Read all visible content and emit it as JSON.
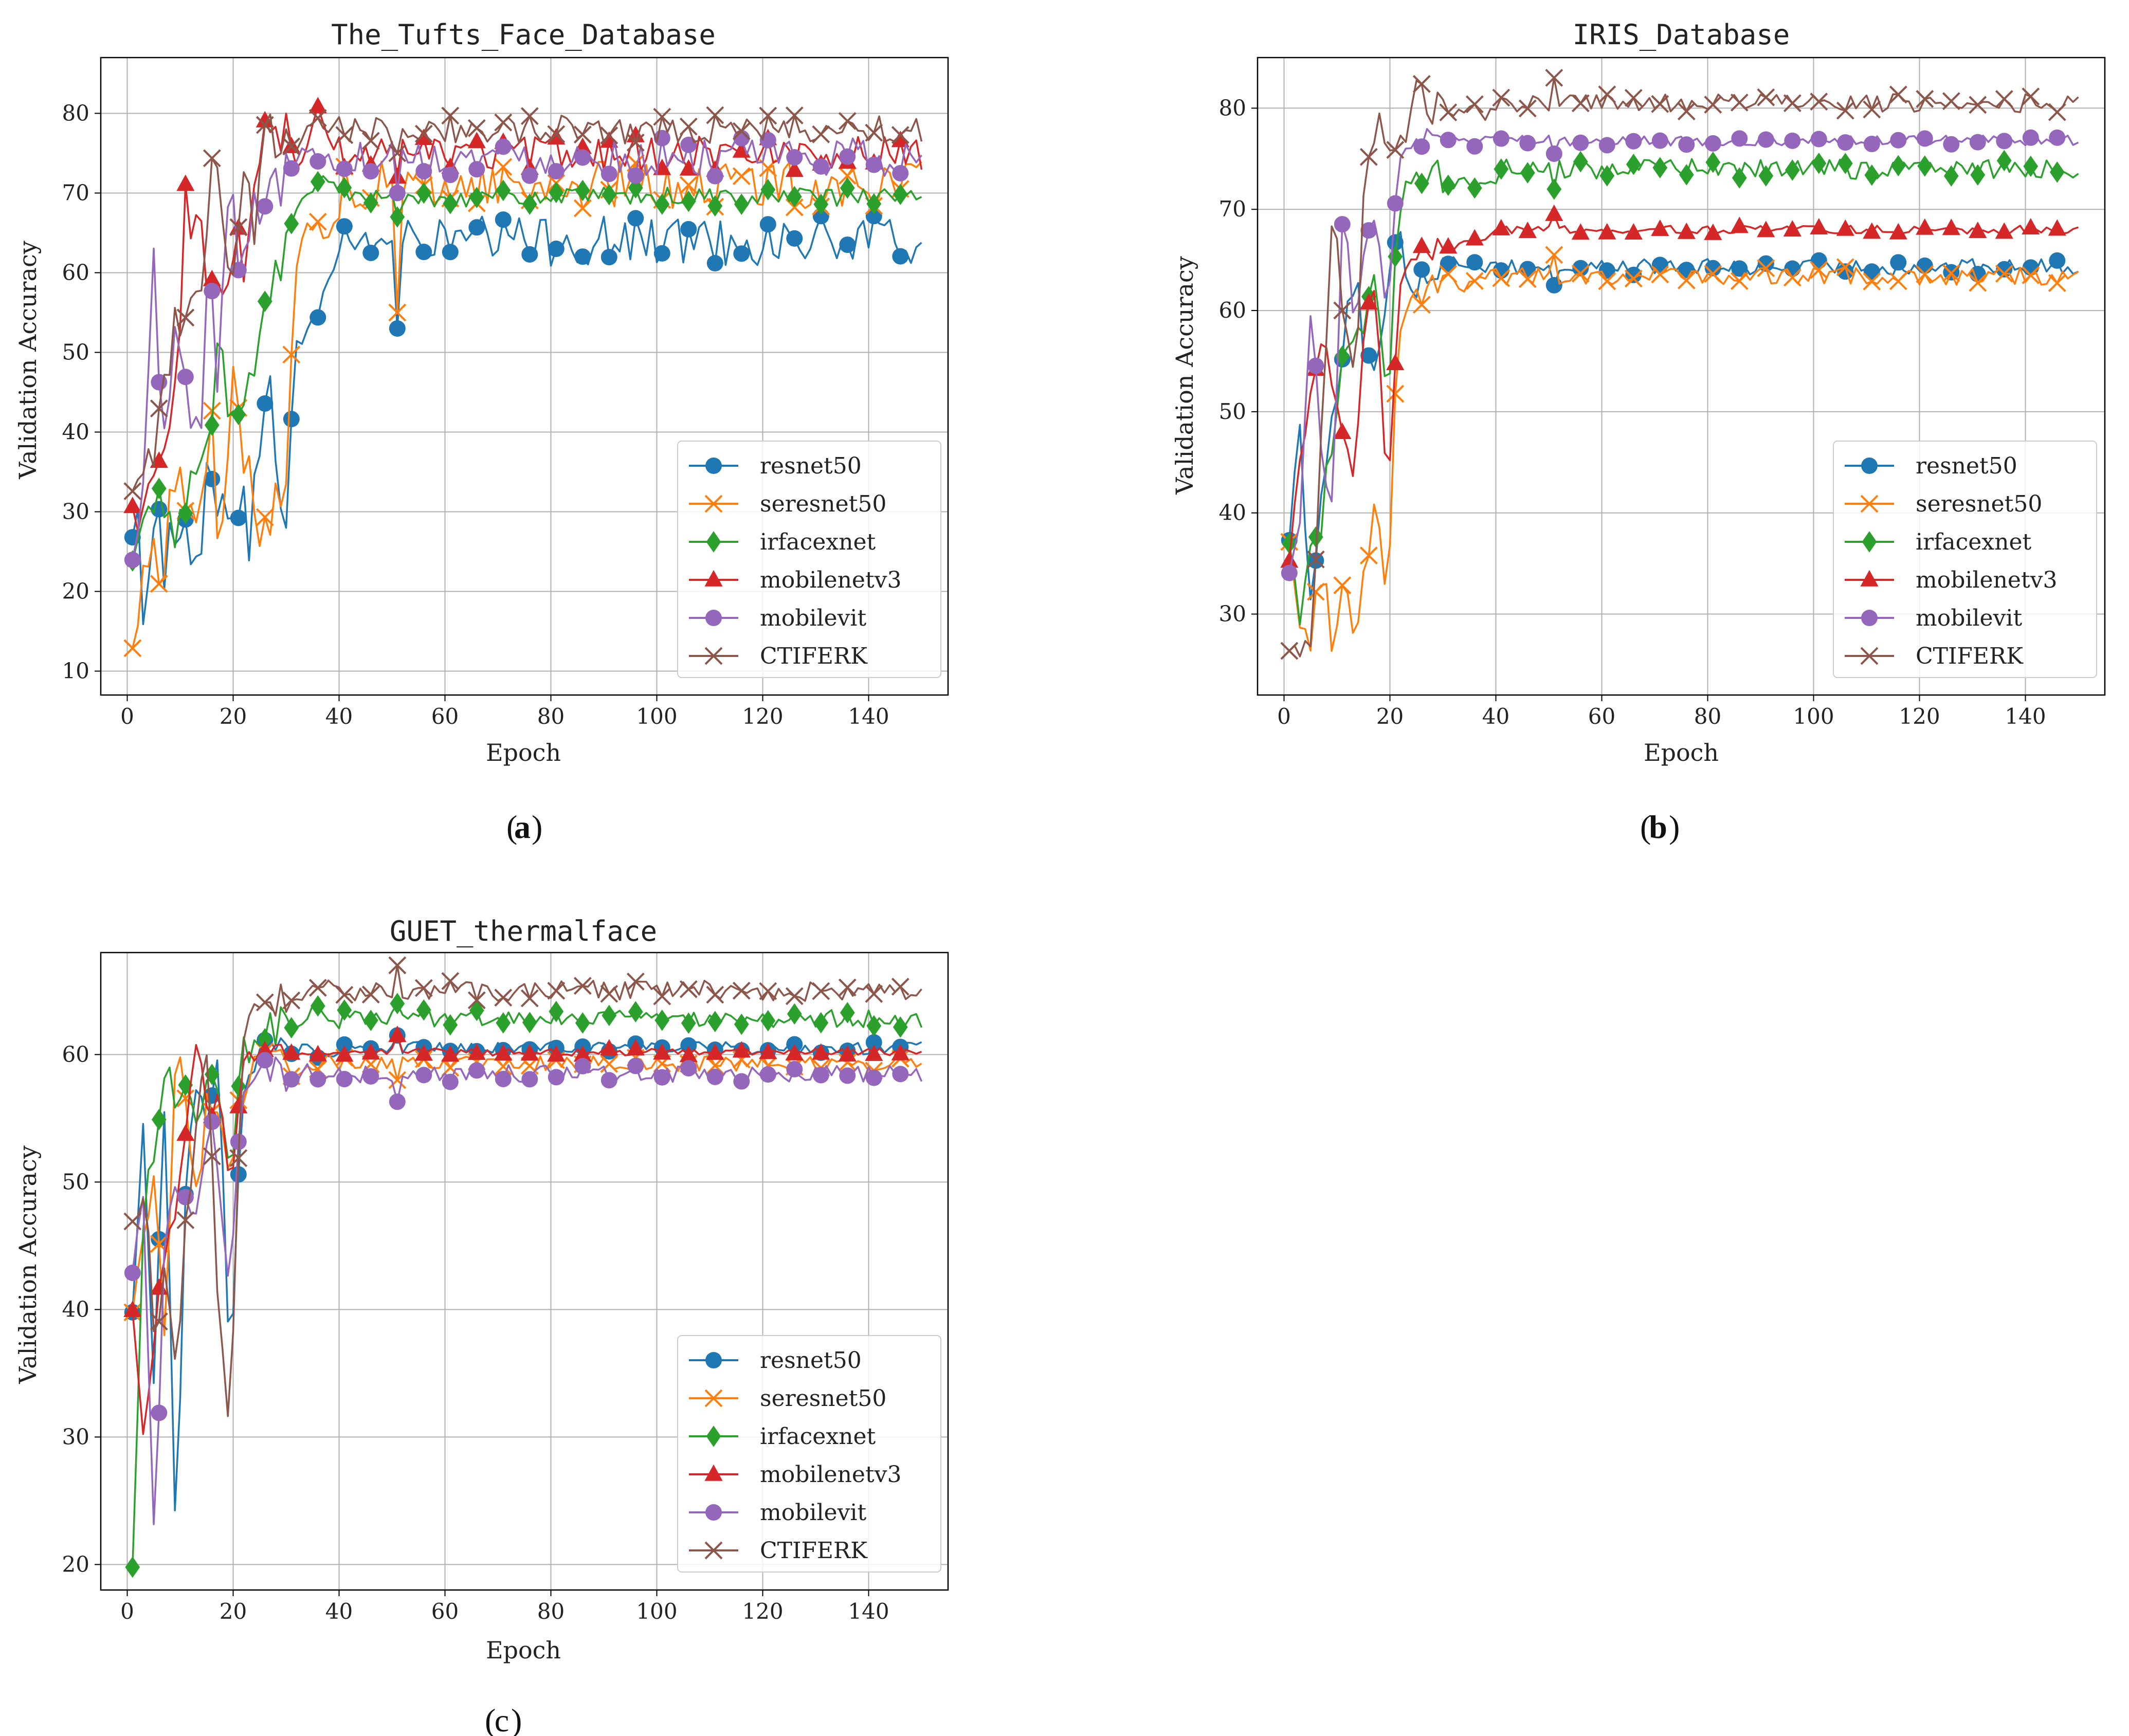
{
  "colors": {
    "resnet50": "#1f77b4",
    "seresnet50": "#ff7f0e",
    "irfacexnet": "#2ca02c",
    "mobilenetv3": "#d62728",
    "mobilevit": "#9467bd",
    "CTIFERK": "#8c564b"
  },
  "chart_data": [
    {
      "type": "line",
      "panel_label": "a",
      "title": "The_Tufts_Face_Database",
      "xlabel": "Epoch",
      "ylabel": "Validation Accuracy",
      "xlim": [
        -5,
        155
      ],
      "ylim": [
        7,
        87
      ],
      "xticks": [
        0,
        20,
        40,
        60,
        80,
        100,
        120,
        140
      ],
      "yticks": [
        10,
        20,
        30,
        40,
        50,
        60,
        70,
        80
      ],
      "legend": "lower-right",
      "grid": true,
      "series": [
        {
          "name": "resnet50",
          "marker": "circle",
          "early": [
            25,
            22,
            33,
            25,
            21,
            30,
            28,
            32,
            28,
            34,
            33,
            30,
            36,
            44,
            29,
            50,
            53,
            54,
            60,
            62
          ],
          "level": 64,
          "noise": 3.2,
          "spike_value": 53
        },
        {
          "name": "seresnet50",
          "marker": "x",
          "early": [
            11,
            25,
            22,
            28,
            31,
            33,
            30,
            40,
            28,
            43,
            38,
            31,
            32,
            33,
            36,
            60,
            65,
            66,
            64,
            68
          ],
          "level": 71,
          "noise": 3.0,
          "spike_value": 55
        },
        {
          "name": "irfacexnet",
          "marker": "diamond",
          "early": [
            23,
            28,
            30,
            32,
            25,
            33,
            35,
            38,
            52,
            40,
            44,
            48,
            55,
            59,
            62,
            68,
            70,
            71,
            72,
            70
          ],
          "level": 69.5,
          "noise": 1.2,
          "spike_value": 67
        },
        {
          "name": "mobilenetv3",
          "marker": "triangle",
          "early": [
            29,
            35,
            38,
            33,
            50,
            70,
            65,
            60,
            58,
            60,
            62,
            68,
            73,
            81,
            78,
            74,
            75,
            80,
            77,
            76
          ],
          "level": 75,
          "noise": 2.2,
          "spike_value": 72
        },
        {
          "name": "mobilevit",
          "marker": "circle",
          "early": [
            22,
            35,
            61,
            34,
            60,
            43,
            38,
            60,
            45,
            76,
            55,
            72,
            70,
            71,
            74,
            73,
            76,
            75,
            74,
            73
          ],
          "level": 74.5,
          "noise": 2.4,
          "spike_value": 70
        },
        {
          "name": "CTIFERK",
          "marker": "x",
          "early": [
            31,
            33,
            36,
            45,
            53,
            55,
            54,
            71,
            70,
            58,
            73,
            65,
            77,
            78,
            79,
            75,
            78,
            80,
            78,
            79
          ],
          "level": 78,
          "noise": 1.8,
          "spike_value": 75
        }
      ]
    },
    {
      "type": "line",
      "panel_label": "b",
      "title": "IRIS_Database",
      "xlabel": "Epoch",
      "ylabel": "Validation Accuracy",
      "xlim": [
        -5,
        155
      ],
      "ylim": [
        22,
        85
      ],
      "xticks": [
        0,
        20,
        40,
        60,
        80,
        100,
        120,
        140
      ],
      "yticks": [
        30,
        40,
        50,
        60,
        70,
        80
      ],
      "legend": "lower-right",
      "grid": true,
      "series": [
        {
          "name": "resnet50",
          "marker": "circle",
          "early": [
            39,
            48,
            30,
            44,
            50,
            57,
            64,
            55,
            53,
            60,
            70,
            62,
            63,
            64,
            65,
            65,
            64,
            65,
            64,
            65
          ],
          "level": 64.3,
          "noise": 0.8,
          "spike_value": 62.5
        },
        {
          "name": "seresnet50",
          "marker": "x",
          "early": [
            39,
            30,
            27,
            35,
            26,
            36,
            28,
            35,
            43,
            28,
            58,
            63,
            62,
            63,
            64,
            63,
            62,
            63,
            63,
            64
          ],
          "level": 63.4,
          "noise": 0.9,
          "spike_value": 65.5
        },
        {
          "name": "irfacexnet",
          "marker": "diamond",
          "early": [
            39,
            29,
            35,
            40,
            48,
            55,
            58,
            60,
            67,
            47,
            72,
            71,
            73,
            72,
            73,
            72,
            73,
            72,
            73,
            73
          ],
          "level": 74,
          "noise": 1.0,
          "spike_value": 72
        },
        {
          "name": "mobilenetv3",
          "marker": "triangle",
          "early": [
            36,
            45,
            52,
            58,
            53,
            47,
            43,
            60,
            62,
            40,
            61,
            65,
            66,
            65,
            67,
            66,
            67,
            67,
            67,
            68
          ],
          "level": 68,
          "noise": 0.4,
          "spike_value": 69.5
        },
        {
          "name": "mobilevit",
          "marker": "circle",
          "early": [
            35,
            40,
            61,
            44,
            40,
            73,
            57,
            66,
            70,
            60,
            74,
            77,
            77,
            77,
            76,
            77,
            77,
            76,
            77,
            77
          ],
          "level": 76.8,
          "noise": 0.5,
          "spike_value": 75.5
        },
        {
          "name": "CTIFERK",
          "marker": "x",
          "early": [
            28,
            26,
            25,
            48,
            70,
            60,
            52,
            76,
            79,
            78,
            77,
            78,
            83,
            80,
            80,
            79,
            80,
            80,
            79,
            80
          ],
          "level": 80.5,
          "noise": 0.9,
          "spike_value": 83
        }
      ]
    },
    {
      "type": "line",
      "panel_label": "c",
      "title": "GUET_thermalface",
      "xlabel": "Epoch",
      "ylabel": "Validation Accuracy",
      "xlim": [
        -5,
        155
      ],
      "ylim": [
        18,
        68
      ],
      "xticks": [
        0,
        20,
        40,
        60,
        80,
        100,
        120,
        140
      ],
      "yticks": [
        20,
        30,
        40,
        50,
        60
      ],
      "legend": "lower-right",
      "grid": true,
      "series": [
        {
          "name": "resnet50",
          "marker": "circle",
          "early": [
            40,
            55,
            34,
            58,
            21,
            52,
            57,
            54,
            60,
            33,
            57,
            59,
            61,
            61,
            60,
            60,
            61,
            60,
            60,
            60
          ],
          "level": 60.5,
          "noise": 0.5,
          "spike_value": 61.5
        },
        {
          "name": "seresnet50",
          "marker": "x",
          "early": [
            40,
            45,
            50,
            38,
            62,
            55,
            50,
            57,
            55,
            50,
            57,
            59,
            59,
            60,
            59,
            58,
            59,
            59,
            60,
            59
          ],
          "level": 59.3,
          "noise": 0.6,
          "spike_value": 58
        },
        {
          "name": "irfacexnet",
          "marker": "diamond",
          "early": [
            20,
            48,
            52,
            60,
            54,
            58,
            55,
            59,
            58,
            50,
            60,
            61,
            62,
            62,
            63,
            62,
            63,
            64,
            63,
            62
          ],
          "level": 62.8,
          "noise": 0.7,
          "spike_value": 64
        },
        {
          "name": "mobilenetv3",
          "marker": "triangle",
          "early": [
            40,
            30,
            38,
            45,
            47,
            55,
            62,
            54,
            57,
            49,
            59,
            60,
            60,
            61,
            60,
            60,
            60,
            60,
            60,
            60
          ],
          "level": 60.2,
          "noise": 0.3,
          "spike_value": 61.5
        },
        {
          "name": "mobilevit",
          "marker": "circle",
          "early": [
            43,
            48,
            21,
            45,
            50,
            50,
            47,
            55,
            50,
            40,
            57,
            57,
            58,
            59,
            58,
            58,
            59,
            58,
            58,
            59
          ],
          "level": 58.5,
          "noise": 0.7,
          "spike_value": 56.3
        },
        {
          "name": "CTIFERK",
          "marker": "x",
          "early": [
            47,
            50,
            38,
            42,
            36,
            47,
            55,
            60,
            38,
            29,
            61,
            64,
            65,
            64,
            65,
            64,
            65,
            65,
            66,
            65
          ],
          "level": 65,
          "noise": 0.8,
          "spike_value": 67
        }
      ]
    }
  ]
}
